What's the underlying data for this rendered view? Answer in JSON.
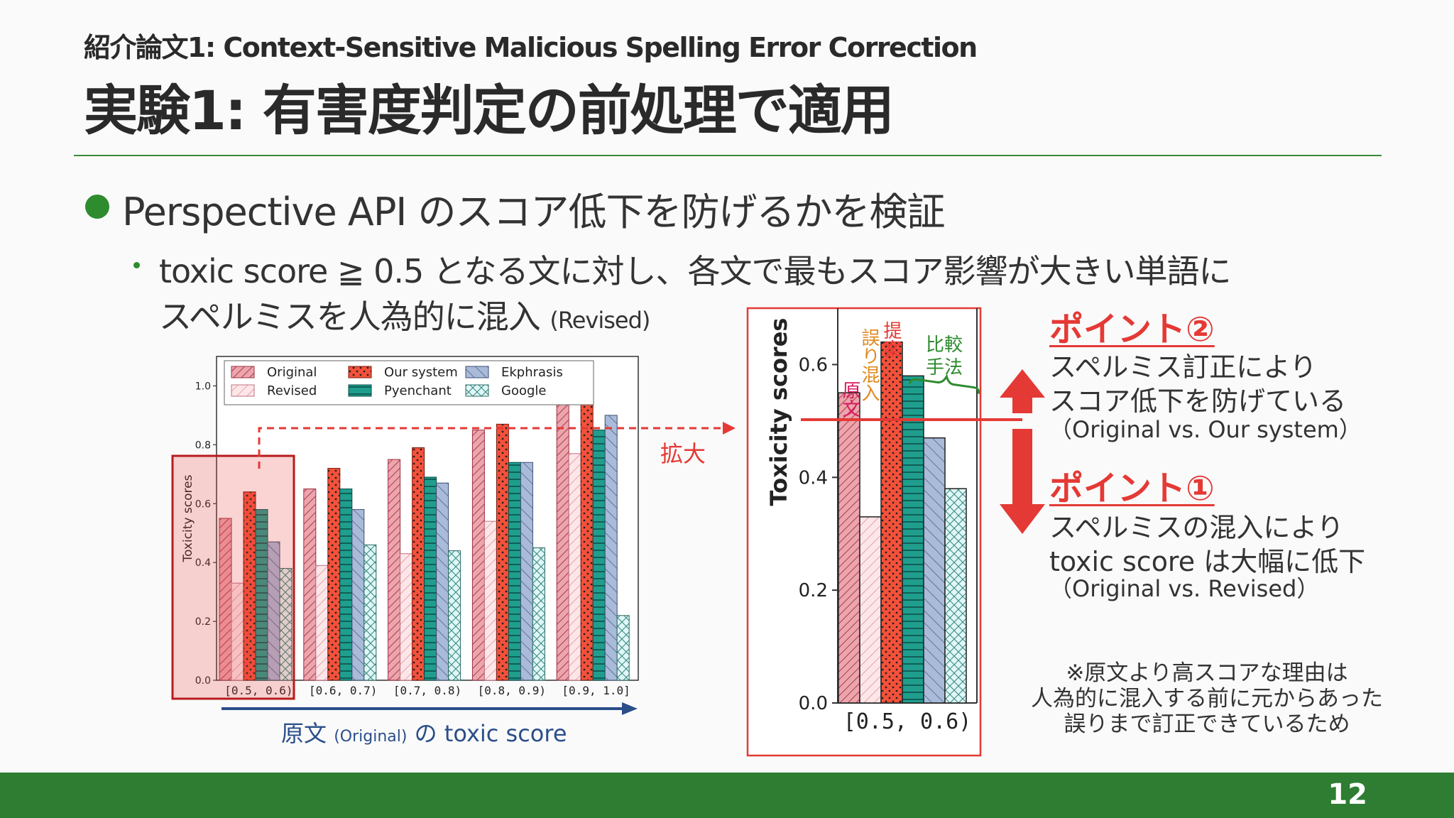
{
  "header": {
    "subtitle": "紹介論文1: Context-Sensitive Malicious Spelling Error Correction",
    "title": "実験1: 有害度判定の前処理で適用"
  },
  "bullets": {
    "main": "Perspective API のスコア低下を防げるかを検証",
    "sub_line1": "toxic score ≧ 0.5 となる文に対し、各文で最もスコア影響が大きい単語に",
    "sub_line2": "スペルミスを人為的に混入",
    "sub_line2_note": "(Revised)"
  },
  "annotations": {
    "zoom_label": "拡大",
    "xaxis_caption_pre": "原文",
    "xaxis_caption_orig": "(Original)",
    "xaxis_caption_post": "の toxic score",
    "label_original": "原文",
    "label_revised": "誤り混入",
    "label_ours": "提案",
    "label_compare": "比較手法",
    "point2_title": "ポイント②",
    "point2_line1": "スペルミス訂正により",
    "point2_line2": "スコア低下を防げている",
    "point2_paren": "（Original vs. Our system）",
    "point1_title": "ポイント①",
    "point1_line1": "スペルミスの混入により",
    "point1_line2": "toxic score は大幅に低下",
    "point1_paren": "（Original vs. Revised）",
    "note_line1": "※原文より高スコアな理由は",
    "note_line2": "人為的に混入する前に元からあった",
    "note_line3": "誤りまで訂正できているため"
  },
  "chart_data": [
    {
      "type": "bar",
      "ylabel": "Toxicity scores",
      "ylim": [
        0,
        1.1
      ],
      "yticks": [
        "0.0",
        "0.2",
        "0.4",
        "0.6",
        "0.8",
        "1.0"
      ],
      "categories": [
        "[0.5, 0.6)",
        "[0.6, 0.7)",
        "[0.7, 0.8)",
        "[0.8, 0.9)",
        "[0.9, 1.0]"
      ],
      "legend_position": "top",
      "series": [
        {
          "name": "Original",
          "color": "#e8a0a8",
          "values": [
            0.55,
            0.65,
            0.75,
            0.85,
            0.96
          ]
        },
        {
          "name": "Revised",
          "color": "#fbe4e6",
          "values": [
            0.33,
            0.39,
            0.43,
            0.54,
            0.77
          ]
        },
        {
          "name": "Our system",
          "color": "#f4513a",
          "values": [
            0.64,
            0.72,
            0.79,
            0.87,
            0.96
          ]
        },
        {
          "name": "Pyenchant",
          "color": "#1f9e8e",
          "values": [
            0.58,
            0.65,
            0.69,
            0.74,
            0.85
          ]
        },
        {
          "name": "Ekphrasis",
          "color": "#a9bbd8",
          "values": [
            0.47,
            0.58,
            0.67,
            0.74,
            0.9
          ]
        },
        {
          "name": "Google",
          "color": "#e0f7f5",
          "values": [
            0.38,
            0.46,
            0.44,
            0.45,
            0.22
          ]
        }
      ]
    },
    {
      "type": "bar",
      "ylabel": "Toxicity scores",
      "ylim": [
        0,
        0.7
      ],
      "yticks": [
        "0.0",
        "0.2",
        "0.4",
        "0.6"
      ],
      "categories": [
        "[0.5, 0.6)"
      ],
      "series": [
        {
          "name": "Original",
          "color": "#e8a0a8",
          "values": [
            0.55
          ]
        },
        {
          "name": "Revised",
          "color": "#fbe4e6",
          "values": [
            0.33
          ]
        },
        {
          "name": "Our system",
          "color": "#f4513a",
          "values": [
            0.64
          ]
        },
        {
          "name": "Pyenchant",
          "color": "#1f9e8e",
          "values": [
            0.58
          ]
        },
        {
          "name": "Ekphrasis",
          "color": "#a9bbd8",
          "values": [
            0.47
          ]
        },
        {
          "name": "Google",
          "color": "#e0f7f5",
          "values": [
            0.38
          ]
        }
      ]
    }
  ],
  "page_number": "12"
}
